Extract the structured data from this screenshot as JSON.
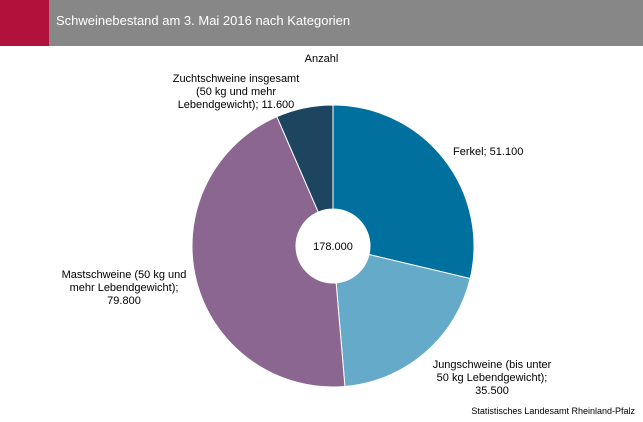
{
  "header": {
    "title": "Schweinebestand am 3. Mai 2016 nach Kategorien",
    "accent_color": "#b0123c",
    "bar_color": "#878787"
  },
  "chart_data": {
    "type": "pie",
    "title": "Schweinebestand am 3. Mai 2016 nach Kategorien",
    "subtitle": "Anzahl",
    "center_label": "178.000",
    "slices": [
      {
        "name": "Ferkel",
        "value": 51100,
        "label_lines": [
          "Ferkel; 51.100"
        ],
        "color": "#00709f"
      },
      {
        "name": "Jungschweine (bis unter 50 kg Lebendgewicht)",
        "value": 35500,
        "label_lines": [
          "Jungschweine (bis unter",
          "50 kg Lebendgewicht);",
          "35.500"
        ],
        "color": "#65abc9"
      },
      {
        "name": "Mastschweine (50 kg und mehr Lebendgewicht)",
        "value": 79800,
        "label_lines": [
          "Mastschweine (50 kg und",
          "mehr Lebendgewicht);",
          "79.800"
        ],
        "color": "#8a6690"
      },
      {
        "name": "Zuchtschweine insgesamt (50 kg und mehr Lebendgewicht)",
        "value": 11600,
        "label_lines": [
          "Zuchtschweine insgesamt",
          "(50 kg und mehr",
          "Lebendgewicht); 11.600"
        ],
        "color": "#1d4560"
      }
    ]
  },
  "source": "Statistisches Landesamt Rheinland-Pfalz"
}
